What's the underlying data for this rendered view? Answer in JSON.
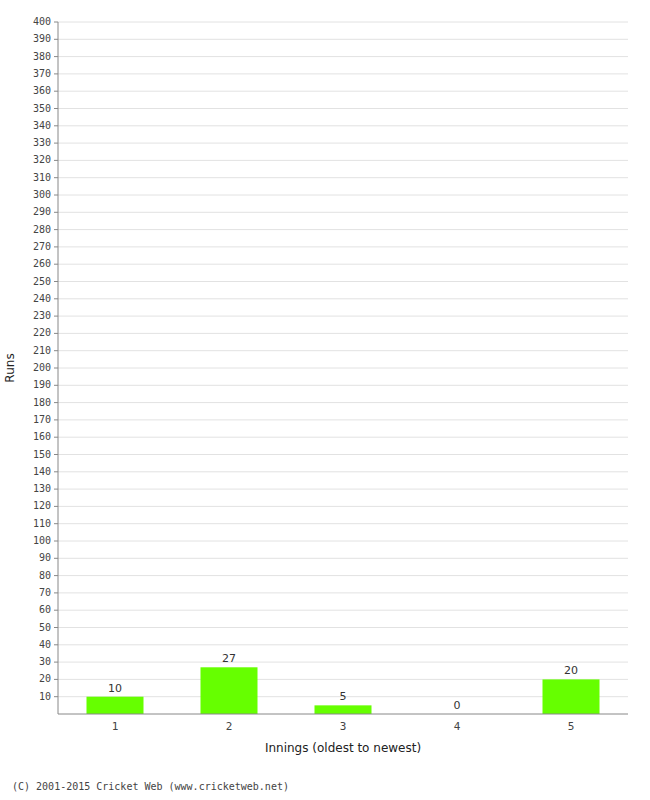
{
  "chart_data": {
    "type": "bar",
    "categories": [
      1,
      2,
      3,
      4,
      5
    ],
    "values": [
      10,
      27,
      5,
      0,
      20
    ],
    "color": "#66ff00",
    "xlabel": "Innings (oldest to newest)",
    "ylabel": "Runs",
    "ylim": [
      0,
      400
    ],
    "yticks": [
      10,
      20,
      30,
      40,
      50,
      60,
      70,
      80,
      90,
      100,
      110,
      120,
      130,
      140,
      150,
      160,
      170,
      180,
      190,
      200,
      210,
      220,
      230,
      240,
      250,
      260,
      270,
      280,
      290,
      300,
      310,
      320,
      330,
      340,
      350,
      360,
      370,
      380,
      390,
      400
    ],
    "grid": true,
    "data_labels": true,
    "annotations": [
      "(C) 2001-2015 Cricket Web (www.cricketweb.net)"
    ]
  }
}
